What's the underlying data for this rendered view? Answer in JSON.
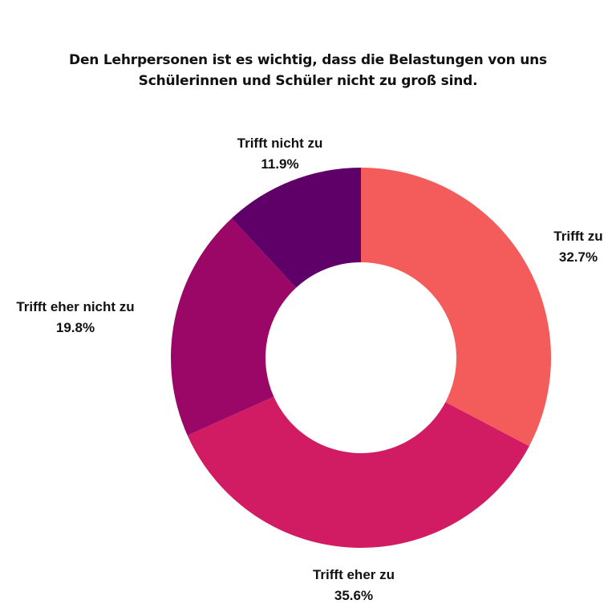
{
  "chart_data": {
    "type": "pie",
    "title_lines": [
      "Den Lehrpersonen ist es wichtig, dass die Belastungen von uns",
      "Schülerinnen und Schüler nicht zu groß sind."
    ],
    "donut": true,
    "slices": [
      {
        "label": "Trifft zu",
        "value": 32.7,
        "value_label": "32.7%",
        "color": "#F45B5B"
      },
      {
        "label": "Trifft eher zu",
        "value": 35.6,
        "value_label": "35.6%",
        "color": "#D11C63"
      },
      {
        "label": "Trifft eher nicht zu",
        "value": 19.8,
        "value_label": "19.8%",
        "color": "#9B0766"
      },
      {
        "label": "Trifft nicht zu",
        "value": 11.9,
        "value_label": "11.9%",
        "color": "#5E0068"
      }
    ],
    "start": "12 o'clock",
    "direction": "clockwise"
  }
}
